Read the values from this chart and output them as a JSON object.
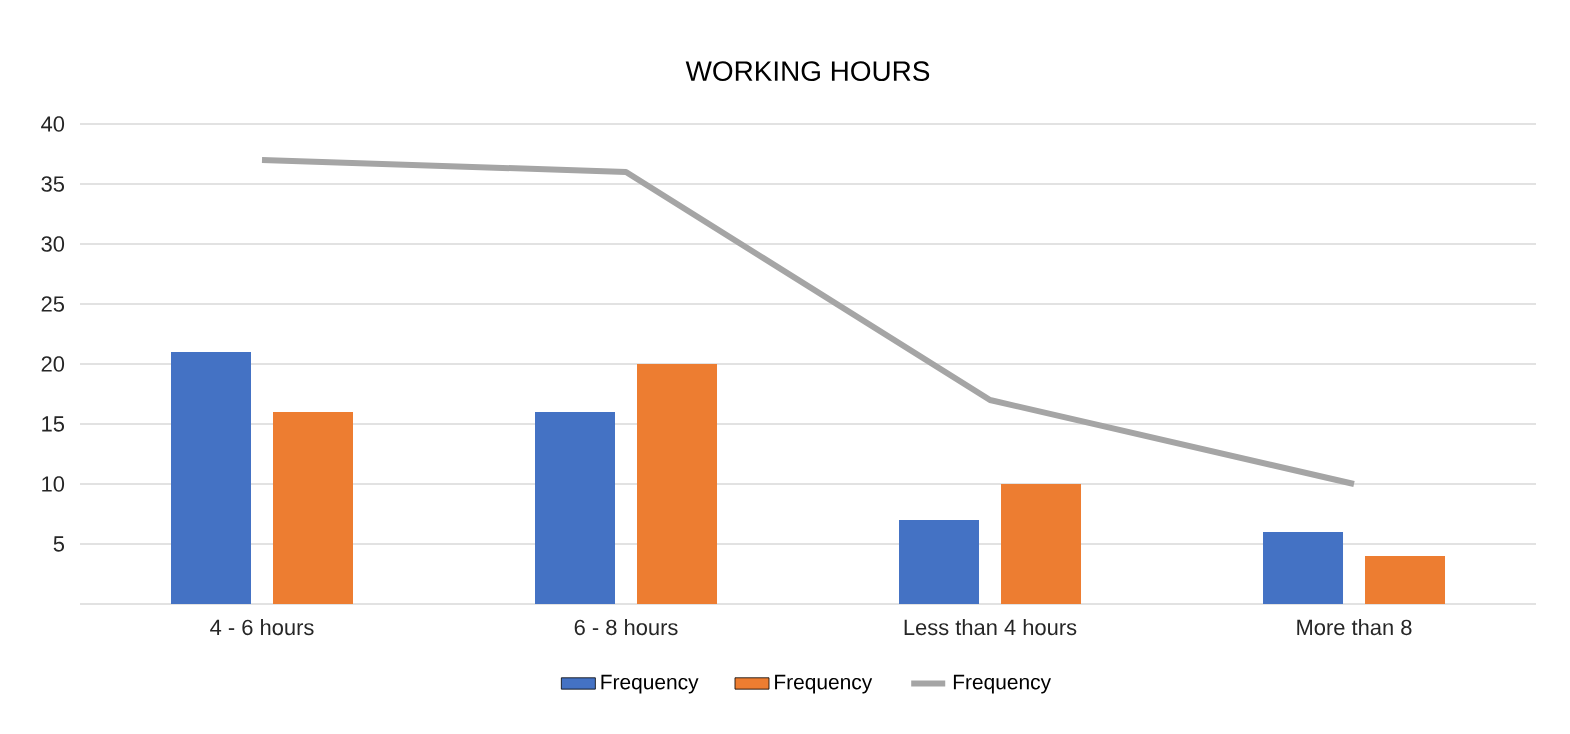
{
  "chart_data": {
    "type": "bar",
    "title": "WORKING HOURS",
    "categories": [
      "4 - 6 hours",
      "6 - 8 hours",
      "Less than 4 hours",
      "More than 8"
    ],
    "series": [
      {
        "name": "Frequency",
        "color": "#4472c4",
        "values": [
          21,
          16,
          7,
          6
        ]
      },
      {
        "name": "Frequency",
        "color": "#ed7d31",
        "values": [
          16,
          20,
          10,
          4
        ]
      },
      {
        "name": "Frequency",
        "color": "#a5a5a5",
        "type": "line",
        "values": [
          37,
          36,
          17,
          10
        ]
      }
    ],
    "ylim": [
      0,
      40
    ],
    "yticks": [
      {
        "value": 0,
        "label": null
      },
      5,
      10,
      15,
      20,
      25,
      30,
      35,
      40
    ],
    "grid": "y",
    "legend": "bottom"
  }
}
